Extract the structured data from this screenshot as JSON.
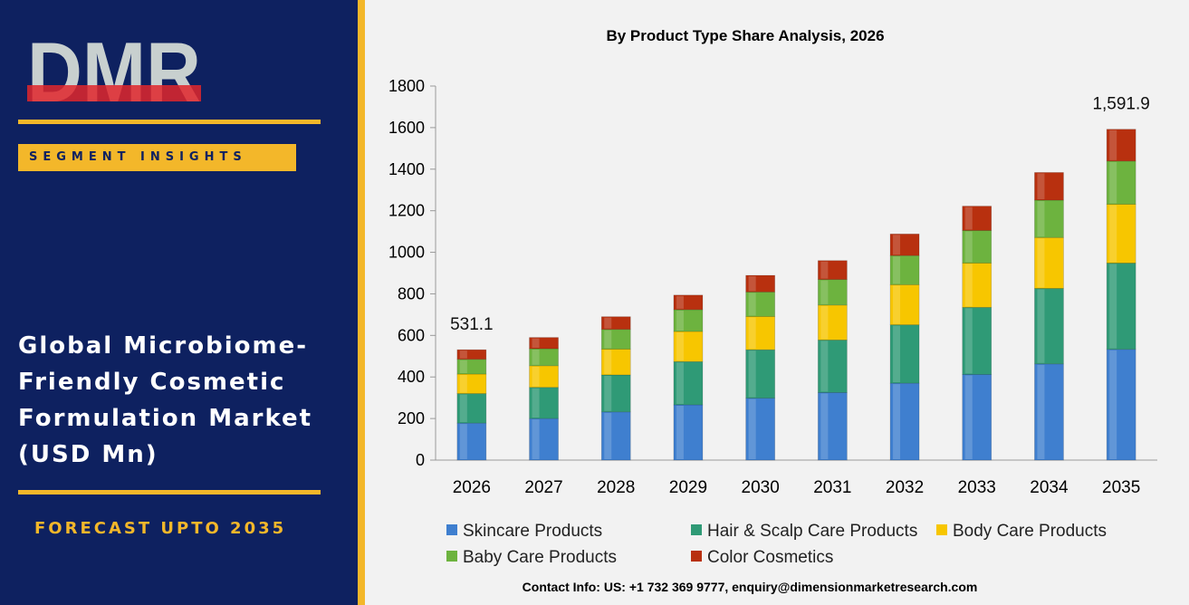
{
  "brand": {
    "logo_text": "DMR",
    "segment_label": "SEGMENT INSIGHTS",
    "title_lines": [
      "Global Microbiome-",
      "Friendly Cosmetic",
      "Formulation Market",
      "(USD Mn)"
    ],
    "forecast": "FORECAST UPTO 2035",
    "colors": {
      "navy": "#0e2160",
      "gold": "#f3b72a",
      "logo_red": "#e0262b",
      "logo_grey": "#c8d0cf"
    }
  },
  "contact": "Contact Info: US: +1 732 369 9777, enquiry@dimensionmarketresearch.com",
  "chart_data": {
    "type": "bar",
    "stacked": true,
    "title": "By Product Type Share Analysis, 2026",
    "xlabel": "",
    "ylabel": "",
    "ylim": [
      0,
      1800
    ],
    "yticks": [
      0,
      200,
      400,
      600,
      800,
      1000,
      1200,
      1400,
      1600,
      1800
    ],
    "grid": false,
    "legend_position": "bottom",
    "categories": [
      "2026",
      "2027",
      "2028",
      "2029",
      "2030",
      "2031",
      "2032",
      "2033",
      "2034",
      "2035"
    ],
    "series": [
      {
        "name": "Skincare Products",
        "color": "#3f7fcf",
        "values": [
          178,
          200,
          232,
          266,
          298,
          325,
          370,
          412,
          463,
          533
        ]
      },
      {
        "name": "Hair & Scalp Care Products",
        "color": "#2f9a76",
        "values": [
          142,
          150,
          178,
          208,
          233,
          253,
          281,
          323,
          363,
          415
        ]
      },
      {
        "name": "Body Care Products",
        "color": "#f7c600",
        "values": [
          94,
          104,
          124,
          145,
          160,
          168,
          193,
          213,
          245,
          283
        ]
      },
      {
        "name": "Baby Care Products",
        "color": "#6db33f",
        "values": [
          71,
          82,
          95,
          105,
          118,
          123,
          140,
          157,
          180,
          208
        ]
      },
      {
        "name": "Color Cosmetics",
        "color": "#b8300f",
        "values": [
          46,
          54,
          61,
          70,
          80,
          91,
          104,
          117,
          133,
          153
        ]
      }
    ],
    "annotations": [
      {
        "category": "2026",
        "label": "531.1"
      },
      {
        "category": "2035",
        "label": "1,591.9"
      }
    ]
  }
}
